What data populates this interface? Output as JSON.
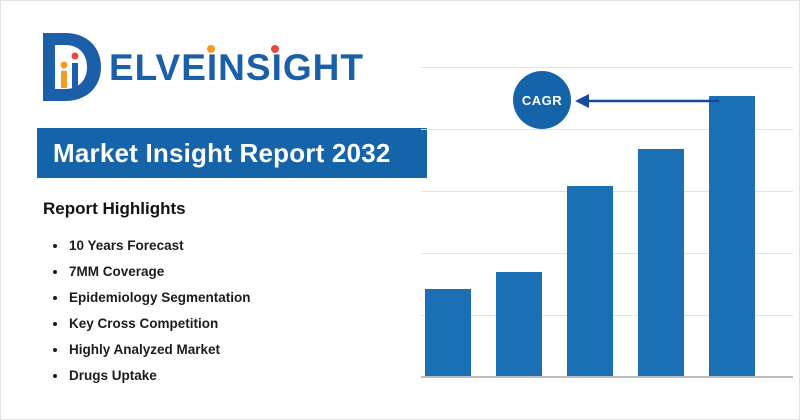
{
  "logo": {
    "wordmark": "ELVEINSIGHT",
    "full_name": "DELVEINSIGHT"
  },
  "banner": {
    "title": "Market Insight Report 2032"
  },
  "highlights": {
    "title": "Report Highlights",
    "items": [
      "10 Years Forecast",
      "7MM Coverage",
      "Epidemiology Segmentation",
      "Key Cross Competition",
      "Highly Analyzed Market",
      "Drugs Uptake"
    ]
  },
  "chart_data": {
    "type": "bar",
    "categories": [
      "",
      "",
      "",
      "",
      ""
    ],
    "values": [
      31,
      37,
      68,
      81,
      100
    ],
    "title": "",
    "xlabel": "",
    "ylabel": "",
    "ylim": [
      0,
      100
    ],
    "grid": true,
    "legend": false,
    "bar_color": "#1a6fb5",
    "annotation": {
      "label": "CAGR",
      "shape": "circle",
      "color": "#1563a8",
      "arrow_direction": "left"
    }
  },
  "colors": {
    "brand_blue": "#1b5fa8",
    "banner_bg": "#1563a8",
    "bar_blue": "#1a6fb5",
    "accent_orange": "#f49c1f",
    "accent_red": "#e14b42",
    "arrow_navy": "#174a9c"
  }
}
